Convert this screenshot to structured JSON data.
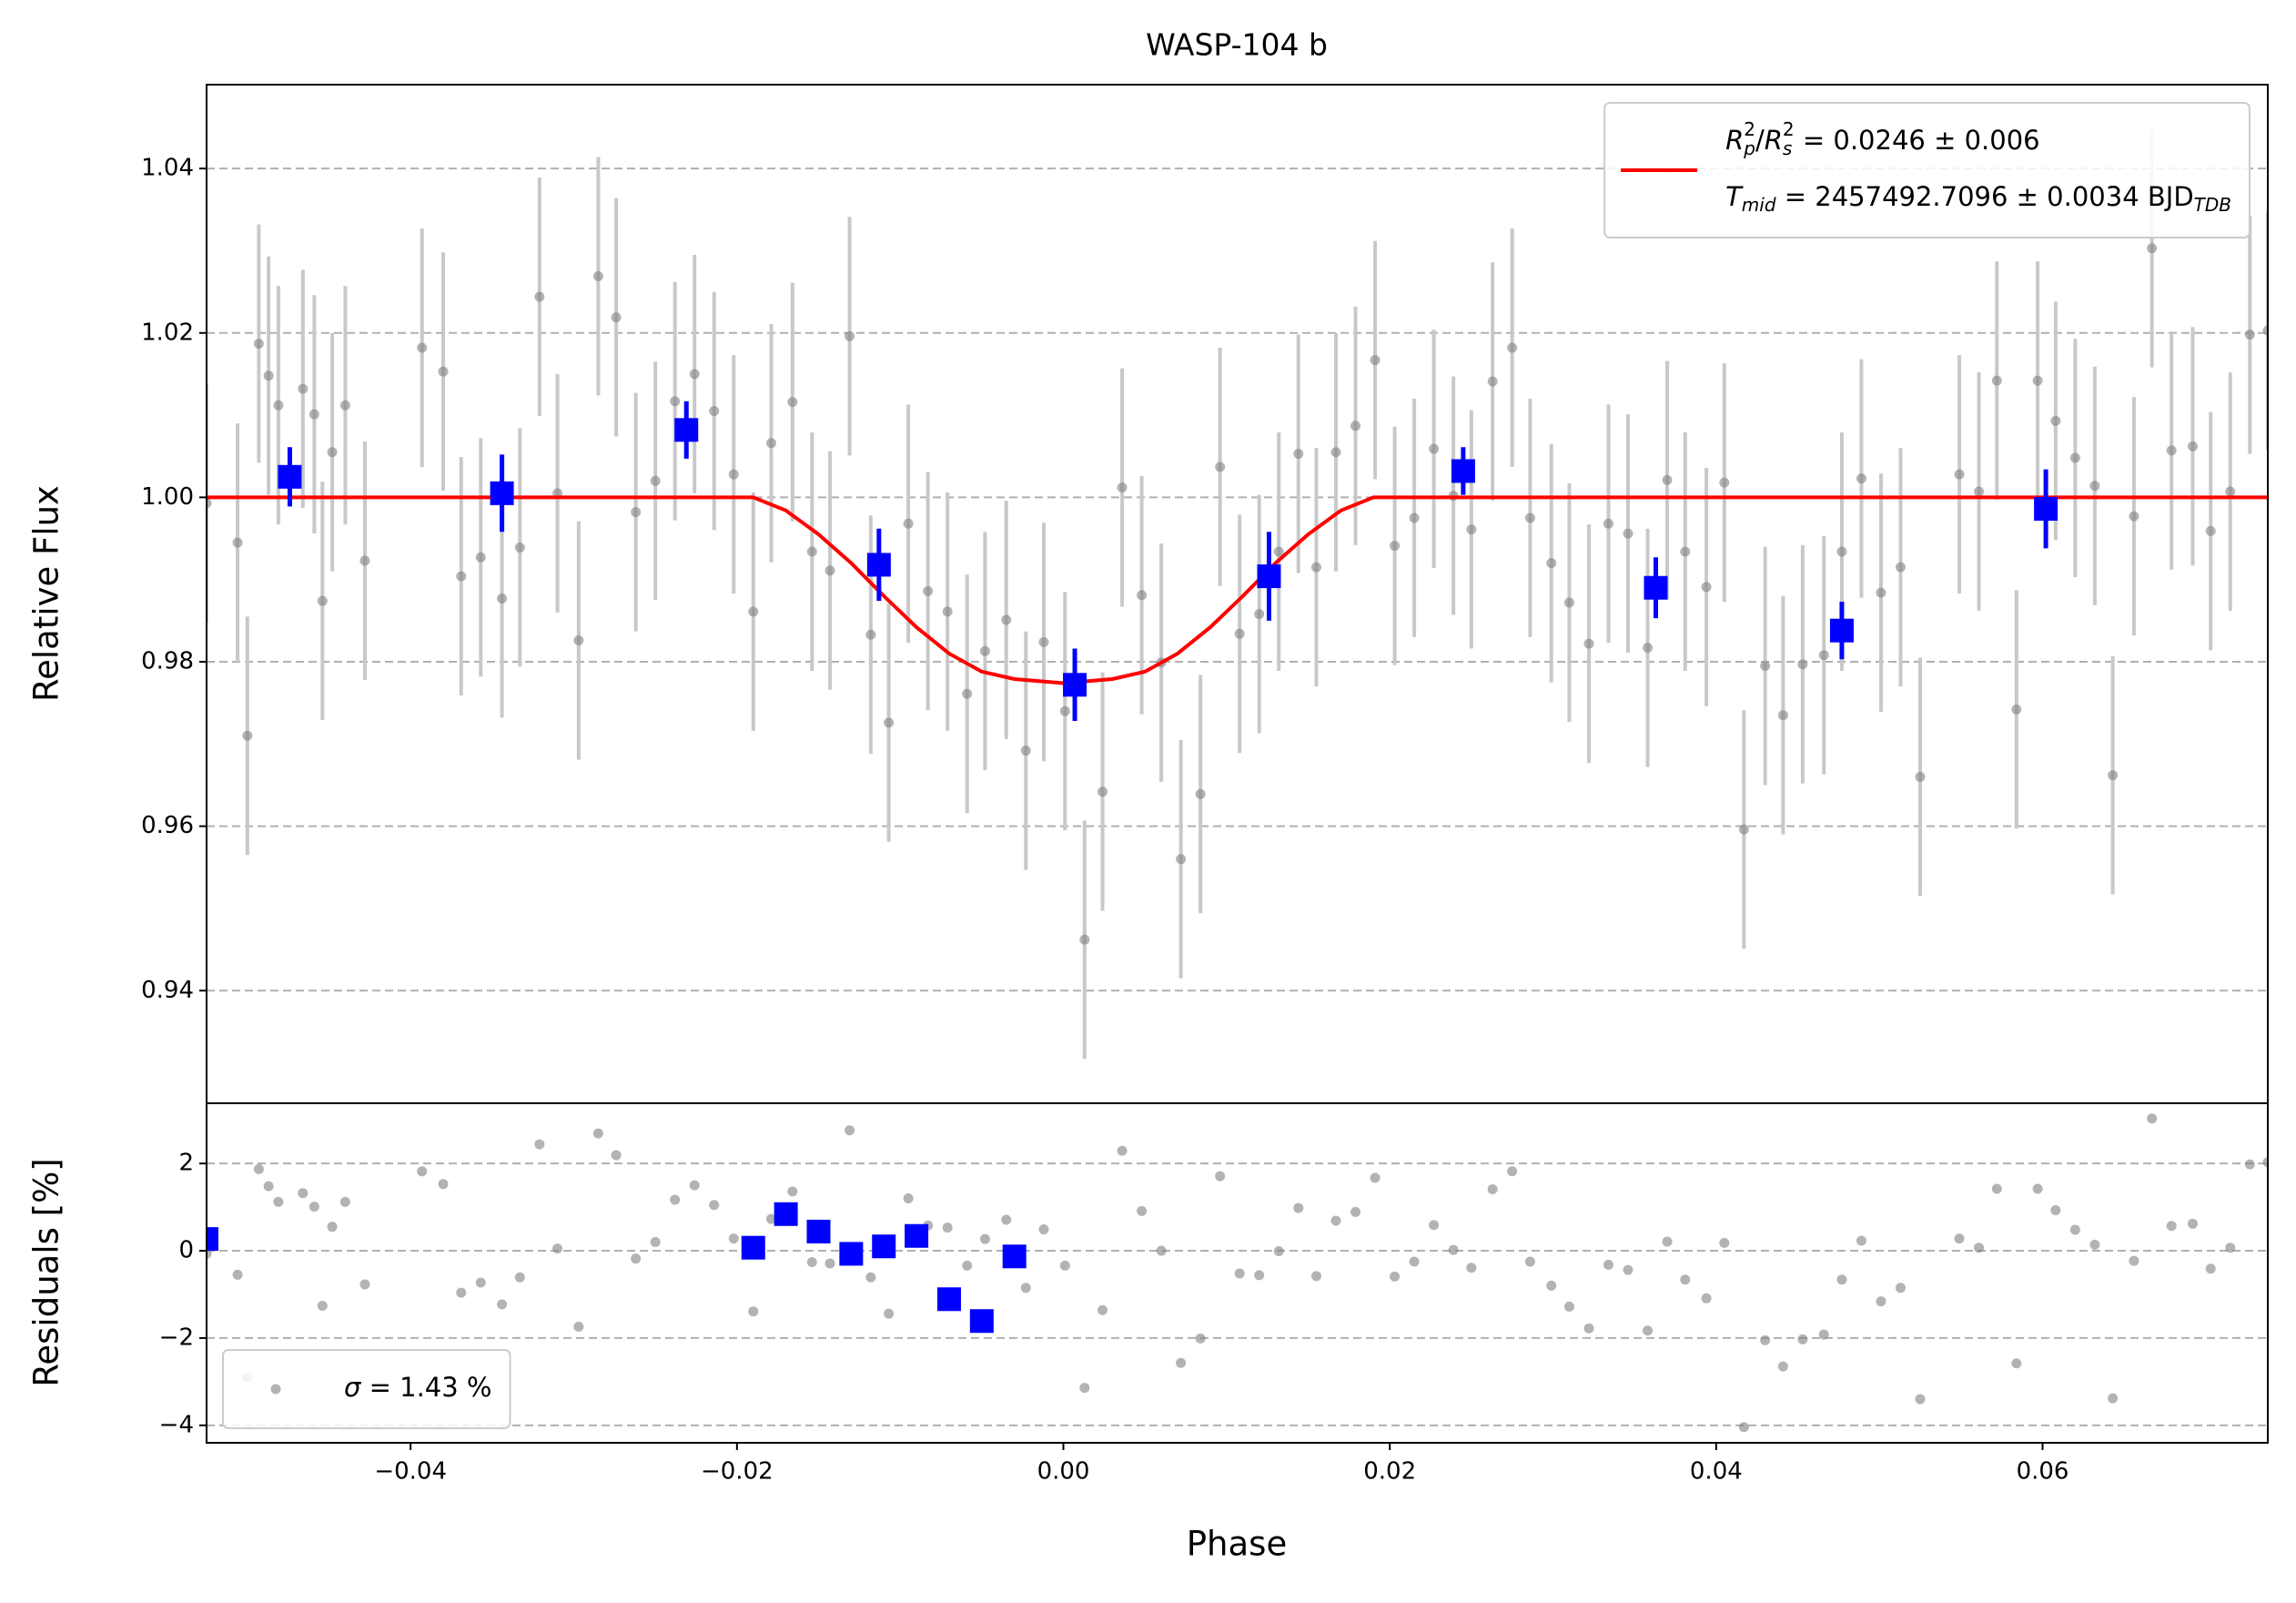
{
  "chart_data": [
    {
      "type": "scatter",
      "title": "WASP-104 b",
      "ylabel": "Relative Flux",
      "xlim": [
        -0.0525,
        0.0738
      ],
      "ylim": [
        0.9263,
        1.0502
      ],
      "yticks": [
        0.94,
        0.96,
        0.98,
        {
          "value": 1,
          "label": "1.00"
        },
        1.02,
        1.04
      ],
      "grid": true,
      "legend": "upper right",
      "series": [
        {
          "marker": "dot",
          "color": "#808080",
          "errcolor": "#c8c8c8",
          "yerr": 0.0145,
          "x": [
            -0.0525,
            -0.0506,
            -0.05,
            -0.0493,
            -0.0487,
            -0.0481,
            -0.0466,
            -0.0459,
            -0.0454,
            -0.0448,
            -0.044,
            -0.0428,
            -0.0393,
            -0.038,
            -0.0369,
            -0.0357,
            -0.0344,
            -0.0333,
            -0.0321,
            -0.031,
            -0.0297,
            -0.0285,
            -0.0274,
            -0.0262,
            -0.025,
            -0.0238,
            -0.0226,
            -0.0214,
            -0.0202,
            -0.019,
            -0.0179,
            -0.0166,
            -0.0154,
            -0.0143,
            -0.0131,
            -0.0118,
            -0.0107,
            -0.0095,
            -0.0083,
            -0.0071,
            -0.0059,
            -0.0048,
            -0.0035,
            -0.0023,
            -0.0012,
            0.0001,
            0.0013,
            0.0024,
            0.0036,
            0.0048,
            0.006,
            0.0072,
            0.0084,
            0.0096,
            0.0108,
            0.012,
            0.0132,
            0.0144,
            0.0155,
            0.0167,
            0.0179,
            0.0191,
            0.0203,
            0.0215,
            0.0227,
            0.0239,
            0.025,
            0.0263,
            0.0275,
            0.0286,
            0.0299,
            0.031,
            0.0322,
            0.0334,
            0.0346,
            0.0358,
            0.037,
            0.0381,
            0.0394,
            0.0405,
            0.0417,
            0.043,
            0.0441,
            0.0453,
            0.0466,
            0.0477,
            0.0489,
            0.0501,
            0.0513,
            0.0525,
            0.0549,
            0.0561,
            0.0572,
            0.0584,
            0.0597,
            0.0608,
            0.062,
            0.0632,
            0.0643,
            0.0656,
            0.0667,
            0.0679,
            0.0692,
            0.0703,
            0.0715,
            0.0727,
            0.0738
          ],
          "values": [
            0.9993,
            0.9945,
            0.971,
            1.0187,
            1.0148,
            1.0112,
            1.0132,
            1.0101,
            0.9874,
            1.0055,
            1.0112,
            0.9923,
            1.0182,
            1.0153,
            0.9904,
            0.9927,
            0.9877,
            0.9939,
            1.0244,
            1.0005,
            0.9826,
            1.0269,
            1.0219,
            0.9982,
            1.002,
            1.0117,
            1.015,
            1.0105,
            1.0028,
            0.9861,
            1.0066,
            1.0116,
            0.9934,
            0.9911,
            1.0196,
            0.9833,
            0.9726,
            0.9968,
            0.9886,
            0.9861,
            0.9761,
            0.9813,
            0.9851,
            0.9692,
            0.9824,
            0.974,
            0.9462,
            0.9642,
            1.0012,
            0.9881,
            0.9799,
            0.956,
            0.9639,
            1.0037,
            0.9834,
            0.9858,
            0.9934,
            1.0053,
            0.9915,
            1.0055,
            1.0087,
            1.0167,
            0.9941,
            0.9975,
            1.0059,
            1.0002,
            0.9961,
            1.0141,
            1.0182,
            0.9975,
            0.992,
            0.9872,
            0.9822,
            0.9968,
            0.9956,
            0.9817,
            1.0021,
            0.9934,
            0.9891,
            1.0018,
            0.9596,
            0.9795,
            0.9735,
            0.9797,
            0.9808,
            0.9934,
            1.0023,
            0.9884,
            0.9915,
            0.966,
            1.0028,
            1.0007,
            1.0142,
            0.9742,
            1.0142,
            1.0093,
            1.0048,
            1.0014,
            0.9662,
            0.9977,
            1.0303,
            1.0057,
            1.0062,
            0.9959,
            1.0007,
            1.0198,
            1.0203
          ]
        },
        {
          "marker": "line",
          "color": "#ff0000",
          "name": [
            [
              {
                "text": "R",
                "math": true
              },
              {
                "sub": "p",
                "sup": "2"
              },
              {
                "text": "/"
              },
              {
                "text": "R",
                "math": true
              },
              {
                "sub": "s",
                "sup": "2"
              },
              {
                "text": " = 0.0246 ± 0.006"
              }
            ],
            [
              {
                "text": "T",
                "math": true
              },
              {
                "sub": "mid"
              },
              {
                "text": " = 2457492.7096 ± 0.0034 BJD"
              },
              {
                "sub": "TDB"
              }
            ]
          ],
          "x": [
            -0.0525,
            -0.019,
            -0.017,
            -0.015,
            -0.013,
            -0.011,
            -0.009,
            -0.007,
            -0.005,
            -0.003,
            0,
            0.003,
            0.005,
            0.007,
            0.009,
            0.011,
            0.013,
            0.015,
            0.017,
            0.019,
            0.0738
          ],
          "values": [
            1,
            1,
            0.9984,
            0.9955,
            0.992,
            0.988,
            0.9842,
            0.981,
            0.9788,
            0.9779,
            0.9774,
            0.9779,
            0.9788,
            0.981,
            0.9842,
            0.988,
            0.992,
            0.9955,
            0.9984,
            1,
            1
          ]
        },
        {
          "marker": "square",
          "color": "#0000ff",
          "x": [
            -0.0474,
            -0.0344,
            -0.0231,
            -0.0113,
            0.0007,
            0.0126,
            0.0245,
            0.0363,
            0.0477,
            0.0602
          ],
          "values": [
            1.0025,
            1.0005,
            1.0082,
            0.9918,
            0.9772,
            0.9904,
            1.0032,
            0.989,
            0.9838,
            0.9986
          ],
          "yerr": [
            0.0036,
            0.0047,
            0.0035,
            0.0044,
            0.0044,
            0.0054,
            0.0029,
            0.0037,
            0.0035,
            0.0048
          ]
        }
      ]
    },
    {
      "type": "scatter",
      "xlabel": "Phase",
      "ylabel": "Residuals [%]",
      "xlim": [
        -0.0525,
        0.0738
      ],
      "ylim": [
        -4.4,
        3.38
      ],
      "xticks": [
        {
          "value": -0.04,
          "label": "−0.04"
        },
        {
          "value": -0.02,
          "label": "−0.02"
        },
        {
          "value": 0,
          "label": "0.00"
        },
        0.02,
        0.04,
        0.06
      ],
      "yticks": [
        {
          "value": -4,
          "label": "−4"
        },
        {
          "value": -2,
          "label": "−2"
        },
        0,
        2
      ],
      "grid": true,
      "legend": "lower left",
      "series": [
        {
          "marker": "dot",
          "color": "#808080",
          "name": [
            [
              {
                "text": "σ",
                "math": true
              },
              {
                "text": " = 1.43 %"
              }
            ]
          ],
          "values": [
            -0.07,
            -0.55,
            -2.9,
            1.87,
            1.48,
            1.12,
            1.32,
            1.01,
            -1.26,
            0.55,
            1.12,
            -0.77,
            1.82,
            1.53,
            -0.96,
            -0.73,
            -1.23,
            -0.61,
            2.44,
            0.05,
            -1.74,
            2.69,
            2.19,
            -0.18,
            0.2,
            1.17,
            1.5,
            1.05,
            0.28,
            -1.39,
            0.73,
            1.36,
            -0.26,
            -0.29,
            2.76,
            -0.61,
            -1.44,
            1.2,
            0.58,
            0.53,
            -0.34,
            0.27,
            0.71,
            -0.85,
            0.49,
            -0.34,
            -3.14,
            -1.36,
            2.29,
            0.91,
            0.0,
            -2.57,
            -2.01,
            1.71,
            -0.52,
            -0.56,
            -0.01,
            0.98,
            -0.58,
            0.69,
            0.89,
            1.67,
            -0.59,
            -0.25,
            0.59,
            0.02,
            -0.39,
            1.41,
            1.82,
            -0.25,
            -0.8,
            -1.28,
            -1.78,
            -0.32,
            -0.44,
            -1.83,
            0.21,
            -0.66,
            -1.09,
            0.18,
            -4.04,
            -2.05,
            -2.65,
            -2.03,
            -1.92,
            -0.66,
            0.23,
            -1.16,
            -0.85,
            -3.4,
            0.28,
            0.07,
            1.42,
            -2.58,
            1.42,
            0.93,
            0.48,
            0.14,
            -3.38,
            -0.23,
            3.03,
            0.57,
            0.62,
            -0.41,
            0.07,
            1.98,
            2.03
          ]
        },
        {
          "marker": "square",
          "color": "#0000ff",
          "values": [
            0.27,
            0.07,
            0.84,
            0.44,
            -0.07,
            0.1,
            0.34,
            -1.11,
            -1.61,
            -0.13
          ]
        }
      ]
    }
  ]
}
